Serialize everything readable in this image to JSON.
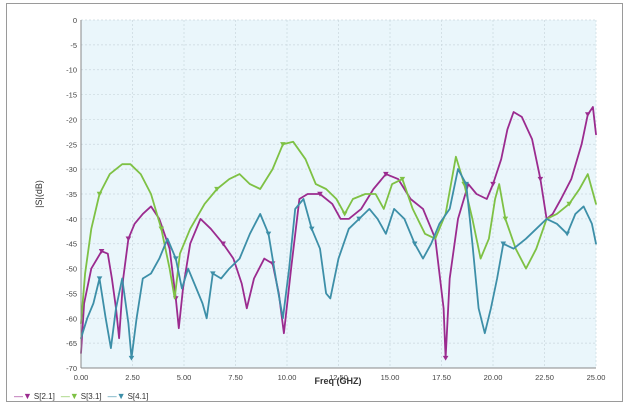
{
  "chart_data": {
    "type": "line",
    "title": "",
    "xlabel": "Freq (GHZ)",
    "ylabel": "|S|(dB)",
    "xlim": [
      0,
      25
    ],
    "ylim": [
      -70,
      0
    ],
    "xticks": [
      "0.00",
      "2.50",
      "5.00",
      "7.50",
      "10.00",
      "12.50",
      "15.00",
      "17.50",
      "20.00",
      "22.50",
      "25.00"
    ],
    "yticks": [
      "0",
      "-5",
      "-10",
      "-15",
      "-20",
      "-25",
      "-30",
      "-35",
      "-40",
      "-45",
      "-50",
      "-55",
      "-60",
      "-65",
      "-70"
    ],
    "grid": true,
    "legend_position": "bottom-left",
    "colors": {
      "plot_background": "#eaf6fb",
      "grid": "#c9d7de"
    },
    "series": [
      {
        "name": "S[2.1]",
        "color": "#9b2b8f",
        "marker": "down-triangle",
        "points": [
          [
            0.0,
            -67
          ],
          [
            0.15,
            -57
          ],
          [
            0.5,
            -50
          ],
          [
            1.0,
            -46.5
          ],
          [
            1.3,
            -47
          ],
          [
            1.5,
            -52
          ],
          [
            1.7,
            -58
          ],
          [
            1.85,
            -64
          ],
          [
            2.05,
            -52
          ],
          [
            2.3,
            -44
          ],
          [
            2.6,
            -41
          ],
          [
            3.0,
            -39
          ],
          [
            3.4,
            -37.5
          ],
          [
            3.8,
            -40
          ],
          [
            4.3,
            -46
          ],
          [
            4.6,
            -56
          ],
          [
            4.75,
            -62
          ],
          [
            4.95,
            -54
          ],
          [
            5.3,
            -45
          ],
          [
            5.8,
            -40
          ],
          [
            6.3,
            -42
          ],
          [
            6.9,
            -45
          ],
          [
            7.4,
            -48
          ],
          [
            7.8,
            -53
          ],
          [
            8.05,
            -58
          ],
          [
            8.4,
            -52
          ],
          [
            8.9,
            -48
          ],
          [
            9.3,
            -49
          ],
          [
            9.6,
            -55
          ],
          [
            9.85,
            -63
          ],
          [
            10.2,
            -50
          ],
          [
            10.6,
            -36
          ],
          [
            11.0,
            -35
          ],
          [
            11.6,
            -35
          ],
          [
            12.2,
            -37
          ],
          [
            12.6,
            -40
          ],
          [
            13.0,
            -40
          ],
          [
            13.6,
            -38
          ],
          [
            14.2,
            -34
          ],
          [
            14.8,
            -31
          ],
          [
            15.4,
            -32
          ],
          [
            16.0,
            -36
          ],
          [
            16.6,
            -38
          ],
          [
            17.2,
            -44
          ],
          [
            17.6,
            -58
          ],
          [
            17.7,
            -68
          ],
          [
            17.9,
            -52
          ],
          [
            18.3,
            -40
          ],
          [
            18.8,
            -33
          ],
          [
            19.2,
            -35
          ],
          [
            19.7,
            -36
          ],
          [
            20.0,
            -33
          ],
          [
            20.4,
            -28
          ],
          [
            20.7,
            -22
          ],
          [
            21.0,
            -18.5
          ],
          [
            21.4,
            -19.5
          ],
          [
            21.9,
            -24
          ],
          [
            22.3,
            -32
          ],
          [
            22.6,
            -40
          ],
          [
            22.9,
            -39
          ],
          [
            23.3,
            -36
          ],
          [
            23.8,
            -32
          ],
          [
            24.3,
            -25
          ],
          [
            24.6,
            -19
          ],
          [
            24.85,
            -17.5
          ],
          [
            25.0,
            -23
          ]
        ]
      },
      {
        "name": "S[3.1]",
        "color": "#7ec144",
        "marker": "down-triangle",
        "points": [
          [
            0.0,
            -61
          ],
          [
            0.2,
            -51
          ],
          [
            0.5,
            -42
          ],
          [
            0.9,
            -35
          ],
          [
            1.4,
            -31
          ],
          [
            2.0,
            -29
          ],
          [
            2.4,
            -29
          ],
          [
            2.9,
            -31
          ],
          [
            3.4,
            -35
          ],
          [
            3.9,
            -42
          ],
          [
            4.3,
            -50
          ],
          [
            4.55,
            -56
          ],
          [
            4.8,
            -47
          ],
          [
            5.3,
            -42
          ],
          [
            6.0,
            -37
          ],
          [
            6.6,
            -34
          ],
          [
            7.2,
            -32
          ],
          [
            7.7,
            -31
          ],
          [
            8.2,
            -33
          ],
          [
            8.7,
            -34
          ],
          [
            9.3,
            -30
          ],
          [
            9.8,
            -25
          ],
          [
            10.3,
            -24.5
          ],
          [
            10.9,
            -28
          ],
          [
            11.4,
            -33
          ],
          [
            11.9,
            -34
          ],
          [
            12.4,
            -36
          ],
          [
            12.8,
            -39
          ],
          [
            13.2,
            -36
          ],
          [
            13.8,
            -35
          ],
          [
            14.3,
            -35
          ],
          [
            14.7,
            -38
          ],
          [
            15.1,
            -33
          ],
          [
            15.6,
            -32
          ],
          [
            16.1,
            -38
          ],
          [
            16.7,
            -43
          ],
          [
            17.2,
            -44
          ],
          [
            17.7,
            -39
          ],
          [
            18.2,
            -27.5
          ],
          [
            18.6,
            -33
          ],
          [
            19.0,
            -40
          ],
          [
            19.4,
            -48
          ],
          [
            19.8,
            -44
          ],
          [
            20.1,
            -36
          ],
          [
            20.3,
            -33
          ],
          [
            20.6,
            -40
          ],
          [
            21.1,
            -46
          ],
          [
            21.6,
            -50
          ],
          [
            22.1,
            -46
          ],
          [
            22.6,
            -40
          ],
          [
            23.1,
            -39
          ],
          [
            23.7,
            -37
          ],
          [
            24.2,
            -34
          ],
          [
            24.6,
            -31
          ],
          [
            25.0,
            -37
          ]
        ]
      },
      {
        "name": "S[4.1]",
        "color": "#3d8fa8",
        "marker": "down-triangle",
        "points": [
          [
            0.0,
            -64
          ],
          [
            0.3,
            -60
          ],
          [
            0.6,
            -57
          ],
          [
            0.9,
            -52
          ],
          [
            1.2,
            -60
          ],
          [
            1.45,
            -66
          ],
          [
            1.7,
            -58
          ],
          [
            2.0,
            -52
          ],
          [
            2.3,
            -61
          ],
          [
            2.45,
            -68
          ],
          [
            2.7,
            -60
          ],
          [
            3.0,
            -52
          ],
          [
            3.4,
            -51
          ],
          [
            3.8,
            -48
          ],
          [
            4.2,
            -44
          ],
          [
            4.6,
            -48
          ],
          [
            4.9,
            -54
          ],
          [
            5.2,
            -50
          ],
          [
            5.5,
            -53
          ],
          [
            5.9,
            -57
          ],
          [
            6.1,
            -60
          ],
          [
            6.4,
            -51
          ],
          [
            6.8,
            -52
          ],
          [
            7.2,
            -50
          ],
          [
            7.7,
            -48
          ],
          [
            8.2,
            -43
          ],
          [
            8.7,
            -39
          ],
          [
            9.1,
            -43
          ],
          [
            9.5,
            -53
          ],
          [
            9.8,
            -60
          ],
          [
            10.1,
            -50
          ],
          [
            10.4,
            -38
          ],
          [
            10.8,
            -36
          ],
          [
            11.2,
            -42
          ],
          [
            11.6,
            -46
          ],
          [
            11.9,
            -55
          ],
          [
            12.1,
            -56
          ],
          [
            12.5,
            -48
          ],
          [
            13.0,
            -42
          ],
          [
            13.5,
            -40
          ],
          [
            14.0,
            -38
          ],
          [
            14.4,
            -40
          ],
          [
            14.8,
            -43
          ],
          [
            15.2,
            -38
          ],
          [
            15.7,
            -40
          ],
          [
            16.2,
            -45
          ],
          [
            16.6,
            -48
          ],
          [
            17.0,
            -45
          ],
          [
            17.4,
            -41
          ],
          [
            17.9,
            -38
          ],
          [
            18.3,
            -30
          ],
          [
            18.7,
            -33
          ],
          [
            19.0,
            -45
          ],
          [
            19.3,
            -58
          ],
          [
            19.6,
            -63
          ],
          [
            19.9,
            -58
          ],
          [
            20.2,
            -52
          ],
          [
            20.5,
            -45
          ],
          [
            21.0,
            -46
          ],
          [
            21.6,
            -44
          ],
          [
            22.1,
            -42
          ],
          [
            22.6,
            -40
          ],
          [
            23.1,
            -41
          ],
          [
            23.6,
            -43
          ],
          [
            24.0,
            -39
          ],
          [
            24.4,
            -37.5
          ],
          [
            24.8,
            -41
          ],
          [
            25.0,
            -45
          ]
        ]
      }
    ]
  }
}
